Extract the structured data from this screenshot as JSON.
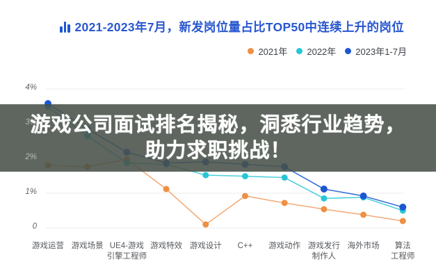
{
  "header": {
    "title": "2021-2023年7月，新发岗位量占比TOP50中连续上升的岗位"
  },
  "overlay": {
    "line1": "游戏公司面试排名揭秘，洞悉行业趋势，",
    "line2": "助力求职挑战！"
  },
  "chart_data": {
    "type": "line",
    "title": "2021-2023年7月，新发岗位量占比TOP50中连续上升的岗位",
    "categories": [
      [
        "游戏运营"
      ],
      [
        "游戏场景"
      ],
      [
        "UE4-游戏",
        "引擎工程师"
      ],
      [
        "游戏特效"
      ],
      [
        "游戏设计"
      ],
      [
        "C++"
      ],
      [
        "游戏动作"
      ],
      [
        "游戏发行",
        "制作人"
      ],
      [
        "海外市场"
      ],
      [
        "算法",
        "工程师"
      ]
    ],
    "series": [
      {
        "name": "2021年",
        "color": "#ED9044",
        "line_color": "#F2AC79",
        "values": [
          1.8,
          1.76,
          1.97,
          1.12,
          0.1,
          0.92,
          0.72,
          0.54,
          0.38,
          0.2
        ]
      },
      {
        "name": "2022年",
        "color": "#27C6D6",
        "line_color": "#4FCEDC",
        "values": [
          3.48,
          2.65,
          1.87,
          1.83,
          1.52,
          1.49,
          1.45,
          0.85,
          0.88,
          0.5
        ]
      },
      {
        "name": "2023年1-7月",
        "color": "#1C57D2",
        "line_color": "#3A70D8",
        "values": [
          3.58,
          2.85,
          2.18,
          1.87,
          1.9,
          1.83,
          1.76,
          1.12,
          0.92,
          0.6
        ]
      }
    ],
    "xlabel": "",
    "ylabel": "",
    "ylim": [
      0,
      4
    ],
    "yticks": [
      "0",
      "1%",
      "2%",
      "3%",
      "4%"
    ],
    "grid": true,
    "legend_position": "top-right"
  }
}
